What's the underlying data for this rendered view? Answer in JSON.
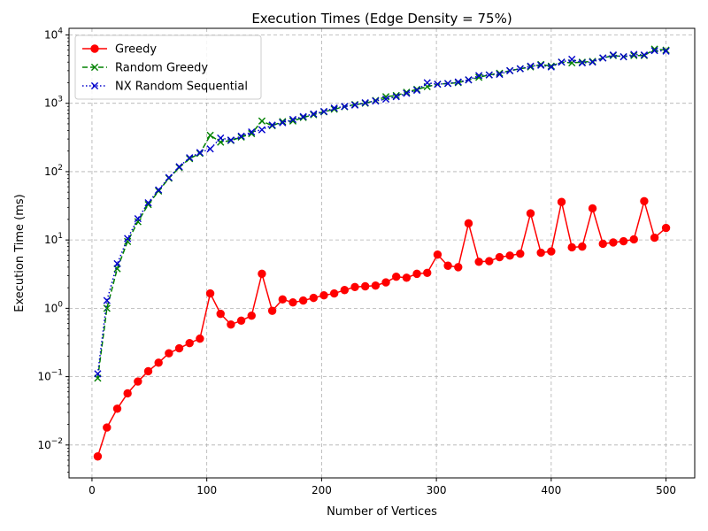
{
  "chart_data": {
    "type": "line",
    "title": "Execution Times (Edge Density = 75%)",
    "xlabel": "Number of Vertices",
    "ylabel": "Execution Time (ms)",
    "xlim": [
      -20,
      525
    ],
    "ylim": [
      0.0033,
      12500
    ],
    "yscale": "log",
    "grid": true,
    "legend_position": "top-left",
    "x_ticks": [
      {
        "value": 0,
        "label": "0"
      },
      {
        "value": 100,
        "label": "100"
      },
      {
        "value": 200,
        "label": "200"
      },
      {
        "value": 300,
        "label": "300"
      },
      {
        "value": 400,
        "label": "400"
      },
      {
        "value": 500,
        "label": "500"
      }
    ],
    "y_ticks": [
      {
        "value": 0.01,
        "base": "10",
        "exp": "−2"
      },
      {
        "value": 0.1,
        "base": "10",
        "exp": "−1"
      },
      {
        "value": 1,
        "base": "10",
        "exp": "0"
      },
      {
        "value": 10,
        "base": "10",
        "exp": "1"
      },
      {
        "value": 100,
        "base": "10",
        "exp": "2"
      },
      {
        "value": 1000,
        "base": "10",
        "exp": "3"
      },
      {
        "value": 10000,
        "base": "10",
        "exp": "4"
      }
    ],
    "x": [
      5,
      13,
      22,
      31,
      40,
      49,
      58,
      67,
      76,
      85,
      94,
      103,
      112,
      121,
      130,
      139,
      148,
      157,
      166,
      175,
      184,
      193,
      202,
      211,
      220,
      229,
      238,
      247,
      256,
      265,
      274,
      283,
      292,
      301,
      310,
      319,
      328,
      337,
      346,
      355,
      364,
      373,
      382,
      391,
      400,
      409,
      418,
      427,
      436,
      445,
      454,
      463,
      472,
      481,
      490,
      500
    ],
    "series": [
      {
        "name": "Greedy",
        "color": "#ff0000",
        "line_style": "solid",
        "marker": "circle",
        "values": [
          0.0068,
          0.018,
          0.034,
          0.057,
          0.085,
          0.12,
          0.16,
          0.22,
          0.26,
          0.31,
          0.36,
          1.65,
          0.83,
          0.58,
          0.66,
          0.78,
          3.2,
          0.92,
          1.35,
          1.22,
          1.3,
          1.42,
          1.55,
          1.65,
          1.85,
          2.05,
          2.1,
          2.15,
          2.4,
          2.9,
          2.8,
          3.2,
          3.3,
          6.1,
          4.2,
          4.0,
          17.5,
          4.8,
          4.9,
          5.6,
          5.9,
          6.3,
          24.5,
          6.5,
          6.8,
          36,
          7.8,
          8.0,
          29,
          8.8,
          9.2,
          9.6,
          10.2,
          37,
          10.8,
          15
        ]
      },
      {
        "name": "Random Greedy",
        "color": "#008000",
        "line_style": "dashed",
        "marker": "x",
        "values": [
          0.095,
          1.0,
          3.8,
          9.5,
          18.5,
          33,
          52,
          80,
          115,
          155,
          185,
          340,
          270,
          285,
          320,
          360,
          550,
          470,
          540,
          550,
          620,
          680,
          750,
          820,
          890,
          960,
          1000,
          1100,
          1250,
          1300,
          1450,
          1600,
          1750,
          1900,
          1950,
          2000,
          2200,
          2400,
          2600,
          2750,
          3000,
          3200,
          3400,
          3700,
          3500,
          4000,
          3900,
          4000,
          4100,
          4600,
          5000,
          4800,
          5000,
          5000,
          6200,
          6000
        ]
      },
      {
        "name": "NX Random Sequential",
        "color": "#0000cc",
        "line_style": "dotted",
        "marker": "x",
        "values": [
          0.11,
          1.3,
          4.5,
          10.5,
          20.5,
          35,
          54,
          82,
          118,
          160,
          190,
          215,
          310,
          290,
          330,
          380,
          410,
          480,
          520,
          580,
          640,
          700,
          760,
          850,
          900,
          940,
          1020,
          1080,
          1150,
          1250,
          1400,
          1550,
          2000,
          1900,
          1950,
          2050,
          2200,
          2550,
          2600,
          2650,
          3000,
          3200,
          3500,
          3600,
          3400,
          4000,
          4400,
          3900,
          4000,
          4600,
          5100,
          4800,
          5200,
          5100,
          5900,
          5800
        ]
      }
    ]
  }
}
